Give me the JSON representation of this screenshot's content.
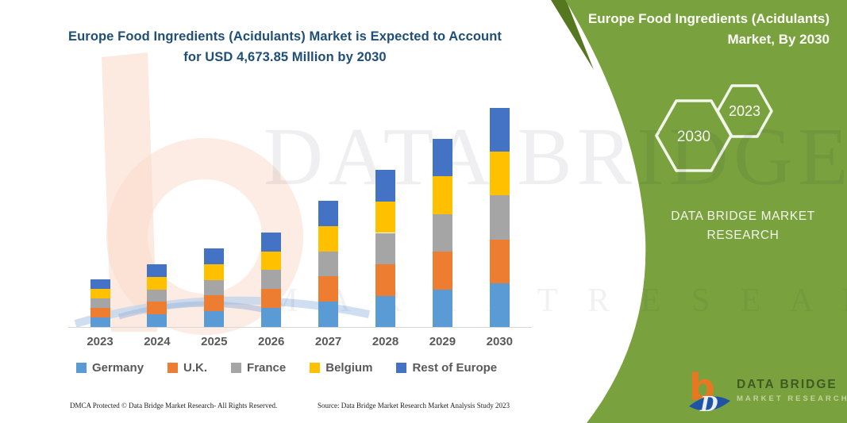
{
  "page": {
    "footer_left": "DMCA Protected © Data Bridge Market Research-  All Rights Reserved.",
    "footer_source": "Source: Data Bridge Market Research  Market Analysis Study 2023"
  },
  "side_panel": {
    "title": "Europe Food Ingredients (Acidulants) Market, By 2030",
    "hexagon_back_label": "2030",
    "hexagon_front_label": "2023",
    "brand_text": "DATA BRIDGE MARKET RESEARCH",
    "background_color": "#79A23E",
    "accent_dark_green": "#55771F",
    "logo": {
      "text_primary": "DATA BRIDGE",
      "text_secondary": "MARKET RESEARCH",
      "mark_orange": "#E87722",
      "mark_blue": "#2053A4"
    }
  },
  "watermark": {
    "brand_upper": "DATA BRIDGE",
    "brand_lower": "M A R K E T   R E S E A R C H"
  },
  "chart_data": {
    "type": "bar",
    "stacked": true,
    "title": "Europe Food Ingredients (Acidulants) Market is Expected to Account for USD 4,673.85 Million by 2030",
    "unit": "USD Million",
    "categories": [
      "2023",
      "2024",
      "2025",
      "2026",
      "2027",
      "2028",
      "2029",
      "2030"
    ],
    "series": [
      {
        "name": "Germany",
        "color": "#5B9BD5",
        "values": [
          202,
          268,
          335,
          404,
          539,
          669,
          804,
          934.77
        ]
      },
      {
        "name": "U.K.",
        "color": "#ED7D31",
        "values": [
          202,
          268,
          335,
          404,
          539,
          669,
          804,
          934.77
        ]
      },
      {
        "name": "France",
        "color": "#A5A5A5",
        "values": [
          202,
          268,
          335,
          404,
          539,
          669,
          804,
          934.77
        ]
      },
      {
        "name": "Belgium",
        "color": "#FFC000",
        "values": [
          202,
          268,
          335,
          404,
          539,
          669,
          804,
          934.77
        ]
      },
      {
        "name": "Rest of Europe",
        "color": "#4472C4",
        "values": [
          202,
          268,
          335,
          404,
          539,
          669,
          804,
          934.77
        ]
      }
    ],
    "totals": [
      1010,
      1340,
      1675,
      2020,
      2695,
      3345,
      4020,
      4673.85
    ],
    "total_2030_labeled": 4673.85,
    "values_estimated": true,
    "legend_position": "bottom",
    "y_axis_visible": false,
    "x_axis_visible": true,
    "grid": false
  }
}
